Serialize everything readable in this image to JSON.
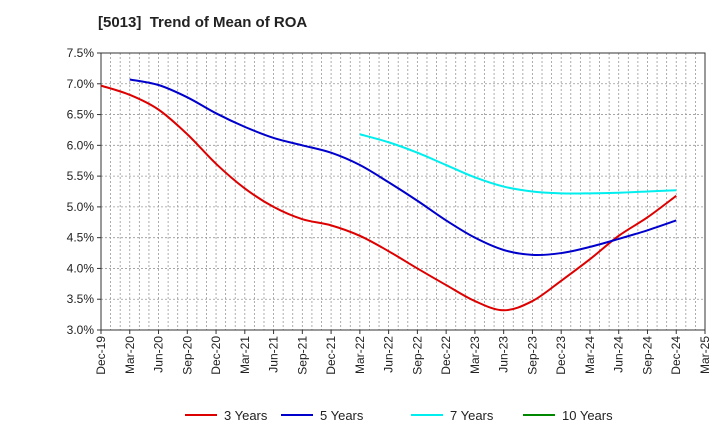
{
  "chart_data": {
    "type": "line",
    "title": "[5013]  Trend of Mean of ROA",
    "xlabel": "",
    "ylabel": "",
    "ylim": [
      3.0,
      7.5
    ],
    "yticks": [
      "3.0%",
      "3.5%",
      "4.0%",
      "4.5%",
      "5.0%",
      "5.5%",
      "6.0%",
      "6.5%",
      "7.0%",
      "7.5%"
    ],
    "ytick_values": [
      3.0,
      3.5,
      4.0,
      4.5,
      5.0,
      5.5,
      6.0,
      6.5,
      7.0,
      7.5
    ],
    "categories": [
      "Dec-19",
      "Mar-20",
      "Jun-20",
      "Sep-20",
      "Dec-20",
      "Mar-21",
      "Jun-21",
      "Sep-21",
      "Dec-21",
      "Mar-22",
      "Jun-22",
      "Sep-22",
      "Dec-22",
      "Mar-23",
      "Jun-23",
      "Sep-23",
      "Dec-23",
      "Mar-24",
      "Jun-24",
      "Sep-24",
      "Dec-24",
      "Mar-25"
    ],
    "grid": true,
    "legend_position": "bottom",
    "series": [
      {
        "name": "3 Years",
        "color": "#dd0000",
        "values": [
          6.97,
          6.82,
          6.58,
          6.18,
          5.7,
          5.3,
          5.0,
          4.8,
          4.7,
          4.53,
          4.28,
          4.0,
          3.73,
          3.47,
          3.32,
          3.47,
          3.8,
          4.15,
          4.53,
          4.83,
          5.18,
          null
        ]
      },
      {
        "name": "5 Years",
        "color": "#0000cc",
        "values": [
          null,
          7.07,
          6.98,
          6.78,
          6.52,
          6.3,
          6.12,
          6.0,
          5.88,
          5.68,
          5.4,
          5.1,
          4.78,
          4.5,
          4.3,
          4.22,
          4.25,
          4.35,
          4.48,
          4.62,
          4.78,
          null
        ]
      },
      {
        "name": "7 Years",
        "color": "#00eeee",
        "values": [
          null,
          null,
          null,
          null,
          null,
          null,
          null,
          null,
          null,
          6.18,
          6.05,
          5.88,
          5.68,
          5.48,
          5.33,
          5.25,
          5.22,
          5.22,
          5.23,
          5.25,
          5.27,
          null
        ]
      },
      {
        "name": "10 Years",
        "color": "#008800",
        "values": [
          null,
          null,
          null,
          null,
          null,
          null,
          null,
          null,
          null,
          null,
          null,
          null,
          null,
          null,
          null,
          null,
          null,
          null,
          null,
          null,
          null,
          null
        ]
      }
    ]
  }
}
